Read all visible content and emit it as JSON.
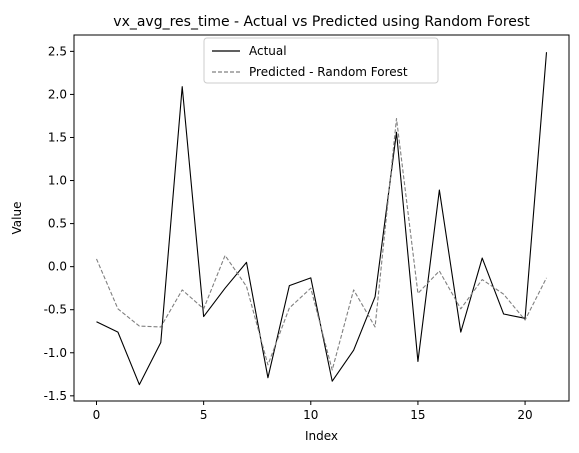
{
  "chart_data": {
    "type": "line",
    "title": "vx_avg_res_time - Actual vs Predicted using Random Forest",
    "xlabel": "Index",
    "ylabel": "Value",
    "xlim": [
      -1.05,
      22.05
    ],
    "ylim": [
      -1.56,
      2.69
    ],
    "xticks": [
      0,
      5,
      10,
      15,
      20
    ],
    "yticks": [
      -1.5,
      -1.0,
      -0.5,
      0.0,
      0.5,
      1.0,
      1.5,
      2.0,
      2.5
    ],
    "grid": false,
    "legend_position": "top-center",
    "x": [
      0,
      1,
      2,
      3,
      4,
      5,
      6,
      7,
      8,
      9,
      10,
      11,
      12,
      13,
      14,
      15,
      16,
      17,
      18,
      19,
      20,
      21
    ],
    "series": [
      {
        "name": "Actual",
        "color": "#000000",
        "style": "solid",
        "values": [
          -0.64,
          -0.76,
          -1.37,
          -0.88,
          2.09,
          -0.58,
          -0.25,
          0.05,
          -1.29,
          -0.22,
          -0.13,
          -1.33,
          -0.97,
          -0.35,
          1.56,
          -1.1,
          0.89,
          -0.76,
          0.1,
          -0.55,
          -0.6,
          2.49
        ]
      },
      {
        "name": "Predicted - Random Forest",
        "color": "#808080",
        "style": "dashed",
        "values": [
          0.09,
          -0.49,
          -0.69,
          -0.7,
          -0.27,
          -0.49,
          0.13,
          -0.23,
          -1.14,
          -0.48,
          -0.25,
          -1.2,
          -0.27,
          -0.7,
          1.72,
          -0.31,
          -0.05,
          -0.49,
          -0.15,
          -0.32,
          -0.62,
          -0.13
        ]
      }
    ]
  }
}
